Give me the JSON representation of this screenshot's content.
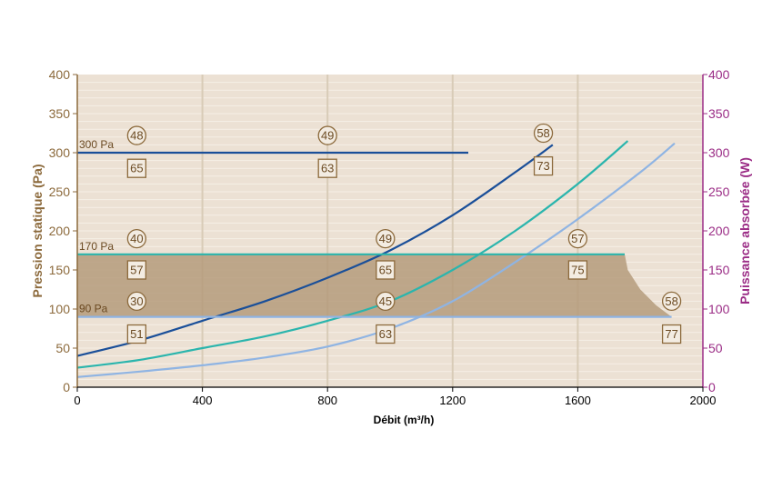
{
  "chart_data": {
    "type": "line",
    "xlabel": "Débit (m³/h)",
    "ylabel_left": "Pression statique (Pa)",
    "ylabel_right": "Puissance absorbée (W)",
    "xlim": [
      0,
      2000
    ],
    "ylim_left": [
      0,
      400
    ],
    "ylim_right": [
      0,
      400
    ],
    "x_ticks": [
      0,
      400,
      800,
      1200,
      1600,
      2000
    ],
    "y_ticks": [
      0,
      50,
      100,
      150,
      200,
      250,
      300,
      350,
      400
    ],
    "grid": true,
    "colors": {
      "plot_bg": "#ece1d4",
      "fill_area": "#b59b7b",
      "grid": "#f6efe6",
      "grid_major": "#d8cbb7",
      "left_axis": "#8c6a3c",
      "right_axis": "#9b2d86",
      "annotation": "#8c6a3c"
    },
    "operating_region": {
      "x": [
        0,
        1750,
        1760,
        1800,
        1850,
        1900,
        0
      ],
      "y": [
        170,
        170,
        150,
        125,
        105,
        90,
        90
      ]
    },
    "series": [
      {
        "color": "#1a4f99",
        "x": [
          0,
          200,
          400,
          600,
          800,
          1000,
          1200,
          1400,
          1520
        ],
        "y": [
          40,
          60,
          85,
          110,
          140,
          175,
          220,
          275,
          310
        ]
      },
      {
        "color": "#2bb5ad",
        "x": [
          0,
          200,
          400,
          600,
          800,
          1000,
          1200,
          1400,
          1600,
          1760
        ],
        "y": [
          25,
          35,
          50,
          65,
          85,
          110,
          150,
          200,
          260,
          315
        ]
      },
      {
        "color": "#8fb4e3",
        "x": [
          0,
          200,
          400,
          600,
          800,
          1000,
          1200,
          1400,
          1600,
          1800,
          1910
        ],
        "y": [
          13,
          20,
          28,
          38,
          52,
          75,
          110,
          160,
          215,
          275,
          312
        ]
      },
      {
        "color": "#1a4f99",
        "x": [
          0,
          1250
        ],
        "y": [
          300,
          300
        ]
      },
      {
        "color": "#2bb5ad",
        "x": [
          0,
          1750
        ],
        "y": [
          170,
          170
        ]
      },
      {
        "color": "#8fb4e3",
        "x": [
          0,
          1900
        ],
        "y": [
          90,
          90
        ]
      }
    ],
    "pressure_labels": [
      {
        "text": "300 Pa",
        "x": 0,
        "y": 300
      },
      {
        "text": "170 Pa",
        "x": 0,
        "y": 170
      },
      {
        "text": "90 Pa",
        "x": 0,
        "y": 90
      }
    ],
    "circle_annotations": [
      {
        "text": "48",
        "x": 190,
        "y": 322
      },
      {
        "text": "49",
        "x": 800,
        "y": 322
      },
      {
        "text": "58",
        "x": 1490,
        "y": 325
      },
      {
        "text": "40",
        "x": 190,
        "y": 190
      },
      {
        "text": "49",
        "x": 985,
        "y": 190
      },
      {
        "text": "57",
        "x": 1600,
        "y": 190
      },
      {
        "text": "30",
        "x": 190,
        "y": 110
      },
      {
        "text": "45",
        "x": 985,
        "y": 110
      },
      {
        "text": "58",
        "x": 1900,
        "y": 110
      }
    ],
    "square_annotations": [
      {
        "text": "65",
        "x": 190,
        "y": 280
      },
      {
        "text": "63",
        "x": 800,
        "y": 280
      },
      {
        "text": "73",
        "x": 1490,
        "y": 283
      },
      {
        "text": "57",
        "x": 190,
        "y": 150
      },
      {
        "text": "65",
        "x": 985,
        "y": 150
      },
      {
        "text": "75",
        "x": 1600,
        "y": 150
      },
      {
        "text": "51",
        "x": 190,
        "y": 68
      },
      {
        "text": "63",
        "x": 985,
        "y": 68
      },
      {
        "text": "77",
        "x": 1900,
        "y": 68
      }
    ]
  }
}
